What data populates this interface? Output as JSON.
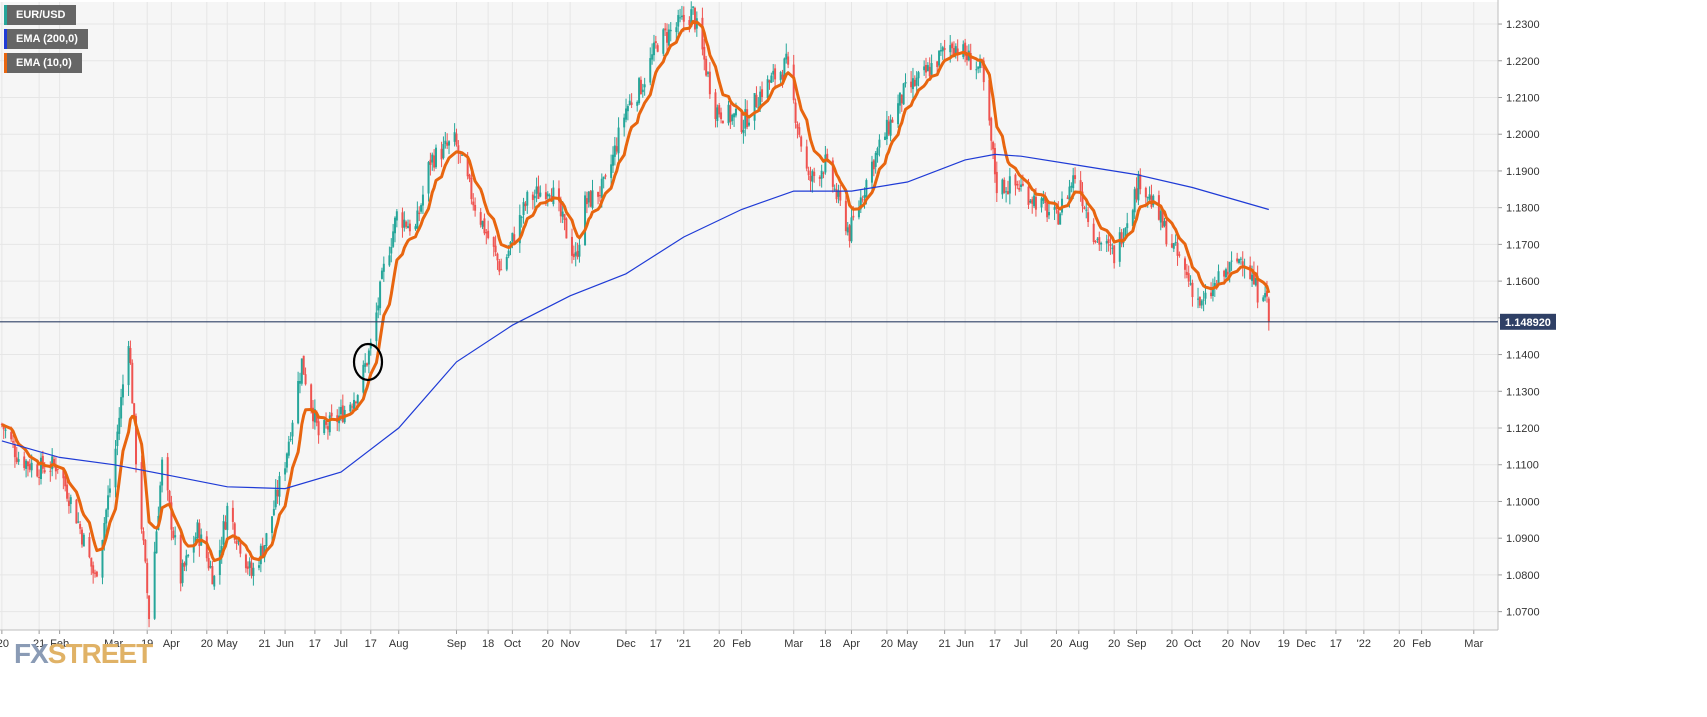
{
  "legend": [
    {
      "label": "EUR/USD",
      "color": "#26a69a"
    },
    {
      "label": "EMA (200,0)",
      "color": "#1f3bd6"
    },
    {
      "label": "EMA (10,0)",
      "color": "#e8650f"
    }
  ],
  "watermark": {
    "fx": "FX",
    "street": "STREET"
  },
  "colors": {
    "up_candle": "#26a69a",
    "down_candle": "#ef5350",
    "ema200": "#1f3bd6",
    "ema10": "#e8650f",
    "current_line": "#2f4066",
    "current_badge": "#2f4066",
    "grid": "#e6e6e6"
  },
  "chart_data": {
    "type": "candlestick",
    "instrument": "EUR/USD",
    "timeframe": "daily",
    "ylim": [
      1.065,
      1.236
    ],
    "current_price": 1.14892,
    "current_price_label": "1.148920",
    "y_ticks": [
      "1.0700",
      "1.0800",
      "1.0900",
      "1.1000",
      "1.1100",
      "1.1200",
      "1.1300",
      "1.1400",
      "1.1500",
      "1.1600",
      "1.1700",
      "1.1800",
      "1.1900",
      "1.2000",
      "1.2100",
      "1.2200",
      "1.2300"
    ],
    "x_ticks": [
      {
        "label": "'20",
        "date": "2020-01-01"
      },
      {
        "label": "21",
        "date": "2020-01-21"
      },
      {
        "label": "Feb",
        "date": "2020-02-01"
      },
      {
        "label": "Mar",
        "date": "2020-03-01"
      },
      {
        "label": "19",
        "date": "2020-03-19"
      },
      {
        "label": "Apr",
        "date": "2020-04-01"
      },
      {
        "label": "20",
        "date": "2020-04-20"
      },
      {
        "label": "May",
        "date": "2020-05-01"
      },
      {
        "label": "21",
        "date": "2020-05-21"
      },
      {
        "label": "Jun",
        "date": "2020-06-01"
      },
      {
        "label": "17",
        "date": "2020-06-17"
      },
      {
        "label": "Jul",
        "date": "2020-07-01"
      },
      {
        "label": "17",
        "date": "2020-07-17"
      },
      {
        "label": "Aug",
        "date": "2020-08-01"
      },
      {
        "label": "Sep",
        "date": "2020-09-01"
      },
      {
        "label": "18",
        "date": "2020-09-18"
      },
      {
        "label": "Oct",
        "date": "2020-10-01"
      },
      {
        "label": "20",
        "date": "2020-10-20"
      },
      {
        "label": "Nov",
        "date": "2020-11-01"
      },
      {
        "label": "Dec",
        "date": "2020-12-01"
      },
      {
        "label": "17",
        "date": "2020-12-17"
      },
      {
        "label": "'21",
        "date": "2021-01-01"
      },
      {
        "label": "20",
        "date": "2021-01-20"
      },
      {
        "label": "Feb",
        "date": "2021-02-01"
      },
      {
        "label": "Mar",
        "date": "2021-03-01"
      },
      {
        "label": "18",
        "date": "2021-03-18"
      },
      {
        "label": "Apr",
        "date": "2021-04-01"
      },
      {
        "label": "20",
        "date": "2021-04-20"
      },
      {
        "label": "May",
        "date": "2021-05-01"
      },
      {
        "label": "21",
        "date": "2021-05-21"
      },
      {
        "label": "Jun",
        "date": "2021-06-01"
      },
      {
        "label": "17",
        "date": "2021-06-17"
      },
      {
        "label": "Jul",
        "date": "2021-07-01"
      },
      {
        "label": "20",
        "date": "2021-07-20"
      },
      {
        "label": "Aug",
        "date": "2021-08-01"
      },
      {
        "label": "20",
        "date": "2021-08-20"
      },
      {
        "label": "Sep",
        "date": "2021-09-01"
      },
      {
        "label": "20",
        "date": "2021-09-20"
      },
      {
        "label": "Oct",
        "date": "2021-10-01"
      },
      {
        "label": "20",
        "date": "2021-10-20"
      },
      {
        "label": "Nov",
        "date": "2021-11-01"
      },
      {
        "label": "19",
        "date": "2021-11-19"
      },
      {
        "label": "Dec",
        "date": "2021-12-01"
      },
      {
        "label": "17",
        "date": "2021-12-17"
      },
      {
        "label": "'22",
        "date": "2022-01-01"
      },
      {
        "label": "20",
        "date": "2022-01-20"
      },
      {
        "label": "Feb",
        "date": "2022-02-01"
      },
      {
        "label": "Mar",
        "date": "2022-03-01"
      }
    ],
    "price_path": [
      {
        "date": "2020-01-01",
        "price": 1.121
      },
      {
        "date": "2020-01-10",
        "price": 1.112
      },
      {
        "date": "2020-01-20",
        "price": 1.109
      },
      {
        "date": "2020-01-31",
        "price": 1.11
      },
      {
        "date": "2020-02-10",
        "price": 1.096
      },
      {
        "date": "2020-02-20",
        "price": 1.079
      },
      {
        "date": "2020-03-01",
        "price": 1.11
      },
      {
        "date": "2020-03-09",
        "price": 1.145
      },
      {
        "date": "2020-03-13",
        "price": 1.112
      },
      {
        "date": "2020-03-20",
        "price": 1.069
      },
      {
        "date": "2020-03-27",
        "price": 1.11
      },
      {
        "date": "2020-04-06",
        "price": 1.079
      },
      {
        "date": "2020-04-15",
        "price": 1.092
      },
      {
        "date": "2020-04-24",
        "price": 1.079
      },
      {
        "date": "2020-05-01",
        "price": 1.098
      },
      {
        "date": "2020-05-14",
        "price": 1.08
      },
      {
        "date": "2020-05-22",
        "price": 1.09
      },
      {
        "date": "2020-06-01",
        "price": 1.111
      },
      {
        "date": "2020-06-10",
        "price": 1.138
      },
      {
        "date": "2020-06-19",
        "price": 1.118
      },
      {
        "date": "2020-06-30",
        "price": 1.123
      },
      {
        "date": "2020-07-10",
        "price": 1.13
      },
      {
        "date": "2020-07-17",
        "price": 1.142
      },
      {
        "date": "2020-07-24",
        "price": 1.163
      },
      {
        "date": "2020-07-31",
        "price": 1.178
      },
      {
        "date": "2020-08-10",
        "price": 1.174
      },
      {
        "date": "2020-08-18",
        "price": 1.193
      },
      {
        "date": "2020-08-31",
        "price": 1.198
      },
      {
        "date": "2020-09-10",
        "price": 1.182
      },
      {
        "date": "2020-09-25",
        "price": 1.163
      },
      {
        "date": "2020-10-09",
        "price": 1.182
      },
      {
        "date": "2020-10-21",
        "price": 1.186
      },
      {
        "date": "2020-11-04",
        "price": 1.166
      },
      {
        "date": "2020-11-09",
        "price": 1.181
      },
      {
        "date": "2020-11-20",
        "price": 1.186
      },
      {
        "date": "2020-12-01",
        "price": 1.207
      },
      {
        "date": "2020-12-10",
        "price": 1.214
      },
      {
        "date": "2020-12-18",
        "price": 1.225
      },
      {
        "date": "2021-01-06",
        "price": 1.233
      },
      {
        "date": "2021-01-18",
        "price": 1.207
      },
      {
        "date": "2021-02-02",
        "price": 1.203
      },
      {
        "date": "2021-02-12",
        "price": 1.212
      },
      {
        "date": "2021-02-25",
        "price": 1.219
      },
      {
        "date": "2021-03-09",
        "price": 1.187
      },
      {
        "date": "2021-03-18",
        "price": 1.192
      },
      {
        "date": "2021-03-31",
        "price": 1.173
      },
      {
        "date": "2021-04-12",
        "price": 1.192
      },
      {
        "date": "2021-04-29",
        "price": 1.211
      },
      {
        "date": "2021-05-10",
        "price": 1.216
      },
      {
        "date": "2021-05-25",
        "price": 1.225
      },
      {
        "date": "2021-06-10",
        "price": 1.217
      },
      {
        "date": "2021-06-18",
        "price": 1.186
      },
      {
        "date": "2021-06-30",
        "price": 1.186
      },
      {
        "date": "2021-07-20",
        "price": 1.177
      },
      {
        "date": "2021-07-30",
        "price": 1.189
      },
      {
        "date": "2021-08-10",
        "price": 1.172
      },
      {
        "date": "2021-08-20",
        "price": 1.167
      },
      {
        "date": "2021-09-03",
        "price": 1.188
      },
      {
        "date": "2021-09-17",
        "price": 1.173
      },
      {
        "date": "2021-10-06",
        "price": 1.153
      },
      {
        "date": "2021-10-15",
        "price": 1.16
      },
      {
        "date": "2021-10-28",
        "price": 1.167
      },
      {
        "date": "2021-11-05",
        "price": 1.157
      },
      {
        "date": "2021-11-09",
        "price": 1.159
      },
      {
        "date": "2021-11-11",
        "price": 1.149
      }
    ],
    "ema200": [
      {
        "date": "2020-01-01",
        "value": 1.1165
      },
      {
        "date": "2020-02-01",
        "value": 1.112
      },
      {
        "date": "2020-03-01",
        "value": 1.11
      },
      {
        "date": "2020-04-01",
        "value": 1.107
      },
      {
        "date": "2020-05-01",
        "value": 1.104
      },
      {
        "date": "2020-06-01",
        "value": 1.1035
      },
      {
        "date": "2020-07-01",
        "value": 1.108
      },
      {
        "date": "2020-08-01",
        "value": 1.12
      },
      {
        "date": "2020-09-01",
        "value": 1.138
      },
      {
        "date": "2020-10-01",
        "value": 1.148
      },
      {
        "date": "2020-11-01",
        "value": 1.156
      },
      {
        "date": "2020-12-01",
        "value": 1.162
      },
      {
        "date": "2021-01-01",
        "value": 1.172
      },
      {
        "date": "2021-02-01",
        "value": 1.1795
      },
      {
        "date": "2021-03-01",
        "value": 1.1845
      },
      {
        "date": "2021-04-01",
        "value": 1.1845
      },
      {
        "date": "2021-05-01",
        "value": 1.187
      },
      {
        "date": "2021-06-01",
        "value": 1.193
      },
      {
        "date": "2021-06-17",
        "value": 1.1945
      },
      {
        "date": "2021-07-01",
        "value": 1.194
      },
      {
        "date": "2021-08-01",
        "value": 1.1915
      },
      {
        "date": "2021-09-01",
        "value": 1.189
      },
      {
        "date": "2021-10-01",
        "value": 1.1855
      },
      {
        "date": "2021-11-11",
        "value": 1.1795
      }
    ]
  }
}
